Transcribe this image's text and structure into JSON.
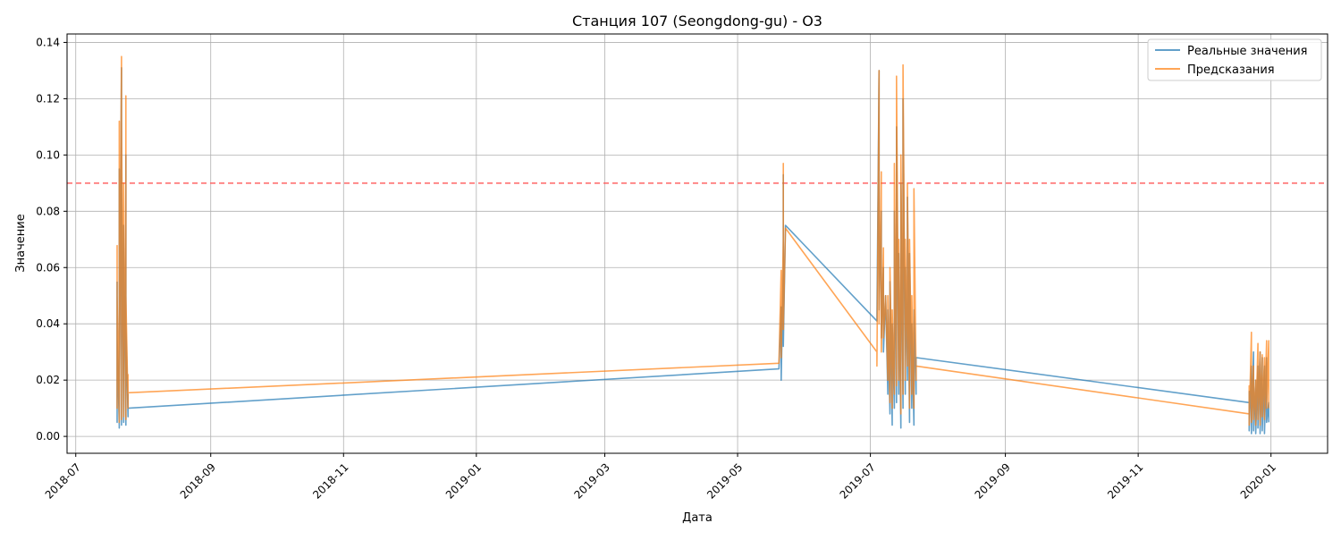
{
  "chart_data": {
    "type": "line",
    "title": "Станция 107 (Seongdong-gu) - O3",
    "xlabel": "Дата",
    "ylabel": "Значение",
    "xlim": [
      "2018-06-27",
      "2020-01-27"
    ],
    "ylim": [
      -0.006,
      0.143
    ],
    "x_ticks": [
      "2018-07",
      "2018-09",
      "2018-11",
      "2019-01",
      "2019-03",
      "2019-05",
      "2019-07",
      "2019-09",
      "2019-11",
      "2020-01"
    ],
    "y_ticks": [
      "0.00",
      "0.02",
      "0.04",
      "0.06",
      "0.08",
      "0.10",
      "0.12",
      "0.14"
    ],
    "grid": true,
    "legend_position": "upper right",
    "threshold": {
      "value": 0.09,
      "color": "#ff6666",
      "style": "dashed"
    },
    "series": [
      {
        "name": "Реальные значения",
        "color": "#1f77b4",
        "points": [
          [
            "2018-07-20",
            0.055
          ],
          [
            "2018-07-20",
            0.005
          ],
          [
            "2018-07-20",
            0.035
          ],
          [
            "2018-07-21",
            0.004
          ],
          [
            "2018-07-21",
            0.09
          ],
          [
            "2018-07-21",
            0.003
          ],
          [
            "2018-07-21",
            0.095
          ],
          [
            "2018-07-21",
            0.005
          ],
          [
            "2018-07-22",
            0.131
          ],
          [
            "2018-07-22",
            0.004
          ],
          [
            "2018-07-22",
            0.06
          ],
          [
            "2018-07-22",
            0.005
          ],
          [
            "2018-07-22",
            0.095
          ],
          [
            "2018-07-23",
            0.006
          ],
          [
            "2018-07-23",
            0.05
          ],
          [
            "2018-07-23",
            0.005
          ],
          [
            "2018-07-23",
            0.075
          ],
          [
            "2018-07-24",
            0.004
          ],
          [
            "2018-07-24",
            0.1
          ],
          [
            "2018-07-24",
            0.006
          ],
          [
            "2018-07-24",
            0.04
          ],
          [
            "2018-07-25",
            0.007
          ],
          [
            "2018-07-25",
            0.015
          ],
          [
            "2018-07-25",
            0.01
          ],
          [
            "2019-05-20",
            0.024
          ],
          [
            "2019-05-21",
            0.046
          ],
          [
            "2019-05-21",
            0.02
          ],
          [
            "2019-05-22",
            0.06
          ],
          [
            "2019-05-22",
            0.035
          ],
          [
            "2019-05-22",
            0.093
          ],
          [
            "2019-05-22",
            0.032
          ],
          [
            "2019-05-23",
            0.075
          ],
          [
            "2019-07-04",
            0.041
          ],
          [
            "2019-07-05",
            0.13
          ],
          [
            "2019-07-05",
            0.045
          ],
          [
            "2019-07-06",
            0.08
          ],
          [
            "2019-07-06",
            0.035
          ],
          [
            "2019-07-07",
            0.06
          ],
          [
            "2019-07-07",
            0.03
          ],
          [
            "2019-07-08",
            0.05
          ],
          [
            "2019-07-09",
            0.015
          ],
          [
            "2019-07-09",
            0.045
          ],
          [
            "2019-07-10",
            0.008
          ],
          [
            "2019-07-10",
            0.055
          ],
          [
            "2019-07-11",
            0.004
          ],
          [
            "2019-07-11",
            0.04
          ],
          [
            "2019-07-12",
            0.01
          ],
          [
            "2019-07-12",
            0.08
          ],
          [
            "2019-07-13",
            0.012
          ],
          [
            "2019-07-13",
            0.11
          ],
          [
            "2019-07-14",
            0.015
          ],
          [
            "2019-07-14",
            0.065
          ],
          [
            "2019-07-15",
            0.003
          ],
          [
            "2019-07-15",
            0.09
          ],
          [
            "2019-07-16",
            0.01
          ],
          [
            "2019-07-16",
            0.12
          ],
          [
            "2019-07-17",
            0.015
          ],
          [
            "2019-07-17",
            0.06
          ],
          [
            "2019-07-18",
            0.02
          ],
          [
            "2019-07-18",
            0.085
          ],
          [
            "2019-07-19",
            0.005
          ],
          [
            "2019-07-19",
            0.065
          ],
          [
            "2019-07-20",
            0.01
          ],
          [
            "2019-07-20",
            0.04
          ],
          [
            "2019-07-21",
            0.004
          ],
          [
            "2019-07-21",
            0.045
          ],
          [
            "2019-07-22",
            0.015
          ],
          [
            "2019-07-22",
            0.028
          ],
          [
            "2019-12-22",
            0.012
          ],
          [
            "2019-12-22",
            0.016
          ],
          [
            "2019-12-22",
            0.002
          ],
          [
            "2019-12-23",
            0.025
          ],
          [
            "2019-12-23",
            0.001
          ],
          [
            "2019-12-24",
            0.03
          ],
          [
            "2019-12-24",
            0.002
          ],
          [
            "2019-12-25",
            0.02
          ],
          [
            "2019-12-25",
            0.001
          ],
          [
            "2019-12-26",
            0.025
          ],
          [
            "2019-12-26",
            0.003
          ],
          [
            "2019-12-27",
            0.03
          ],
          [
            "2019-12-27",
            0.001
          ],
          [
            "2019-12-28",
            0.028
          ],
          [
            "2019-12-28",
            0.002
          ],
          [
            "2019-12-29",
            0.025
          ],
          [
            "2019-12-29",
            0.001
          ],
          [
            "2019-12-30",
            0.028
          ],
          [
            "2019-12-30",
            0.005
          ],
          [
            "2019-12-31",
            0.012
          ],
          [
            "2019-12-31",
            0.005
          ]
        ]
      },
      {
        "name": "Предсказания",
        "color": "#ff7f0e",
        "points": [
          [
            "2018-07-20",
            0.068
          ],
          [
            "2018-07-20",
            0.01
          ],
          [
            "2018-07-20",
            0.05
          ],
          [
            "2018-07-21",
            0.006
          ],
          [
            "2018-07-21",
            0.112
          ],
          [
            "2018-07-21",
            0.005
          ],
          [
            "2018-07-21",
            0.1
          ],
          [
            "2018-07-21",
            0.008
          ],
          [
            "2018-07-22",
            0.135
          ],
          [
            "2018-07-22",
            0.006
          ],
          [
            "2018-07-22",
            0.07
          ],
          [
            "2018-07-22",
            0.008
          ],
          [
            "2018-07-22",
            0.112
          ],
          [
            "2018-07-23",
            0.008
          ],
          [
            "2018-07-23",
            0.06
          ],
          [
            "2018-07-23",
            0.007
          ],
          [
            "2018-07-23",
            0.09
          ],
          [
            "2018-07-24",
            0.006
          ],
          [
            "2018-07-24",
            0.121
          ],
          [
            "2018-07-24",
            0.008
          ],
          [
            "2018-07-24",
            0.05
          ],
          [
            "2018-07-25",
            0.01
          ],
          [
            "2018-07-25",
            0.022
          ],
          [
            "2018-07-25",
            0.0155
          ],
          [
            "2019-05-20",
            0.026
          ],
          [
            "2019-05-21",
            0.059
          ],
          [
            "2019-05-21",
            0.028
          ],
          [
            "2019-05-22",
            0.07
          ],
          [
            "2019-05-22",
            0.04
          ],
          [
            "2019-05-22",
            0.097
          ],
          [
            "2019-05-22",
            0.038
          ],
          [
            "2019-05-23",
            0.074
          ],
          [
            "2019-07-04",
            0.03
          ],
          [
            "2019-07-04",
            0.025
          ],
          [
            "2019-07-05",
            0.13
          ],
          [
            "2019-07-05",
            0.04
          ],
          [
            "2019-07-06",
            0.094
          ],
          [
            "2019-07-06",
            0.03
          ],
          [
            "2019-07-07",
            0.067
          ],
          [
            "2019-07-07",
            0.035
          ],
          [
            "2019-07-08",
            0.05
          ],
          [
            "2019-07-09",
            0.02
          ],
          [
            "2019-07-09",
            0.05
          ],
          [
            "2019-07-10",
            0.012
          ],
          [
            "2019-07-10",
            0.06
          ],
          [
            "2019-07-11",
            0.01
          ],
          [
            "2019-07-11",
            0.045
          ],
          [
            "2019-07-12",
            0.015
          ],
          [
            "2019-07-12",
            0.097
          ],
          [
            "2019-07-13",
            0.018
          ],
          [
            "2019-07-13",
            0.128
          ],
          [
            "2019-07-14",
            0.02
          ],
          [
            "2019-07-14",
            0.07
          ],
          [
            "2019-07-15",
            0.008
          ],
          [
            "2019-07-15",
            0.1
          ],
          [
            "2019-07-16",
            0.015
          ],
          [
            "2019-07-16",
            0.132
          ],
          [
            "2019-07-17",
            0.02
          ],
          [
            "2019-07-17",
            0.07
          ],
          [
            "2019-07-18",
            0.025
          ],
          [
            "2019-07-18",
            0.09
          ],
          [
            "2019-07-19",
            0.01
          ],
          [
            "2019-07-19",
            0.07
          ],
          [
            "2019-07-20",
            0.015
          ],
          [
            "2019-07-20",
            0.05
          ],
          [
            "2019-07-21",
            0.01
          ],
          [
            "2019-07-21",
            0.088
          ],
          [
            "2019-07-22",
            0.02
          ],
          [
            "2019-07-22",
            0.025
          ],
          [
            "2019-12-22",
            0.008
          ],
          [
            "2019-12-22",
            0.018
          ],
          [
            "2019-12-22",
            0.004
          ],
          [
            "2019-12-23",
            0.037
          ],
          [
            "2019-12-23",
            0.005
          ],
          [
            "2019-12-24",
            0.025
          ],
          [
            "2019-12-24",
            0.006
          ],
          [
            "2019-12-25",
            0.02
          ],
          [
            "2019-12-25",
            0.004
          ],
          [
            "2019-12-26",
            0.033
          ],
          [
            "2019-12-26",
            0.006
          ],
          [
            "2019-12-27",
            0.03
          ],
          [
            "2019-12-27",
            0.004
          ],
          [
            "2019-12-28",
            0.029
          ],
          [
            "2019-12-28",
            0.007
          ],
          [
            "2019-12-29",
            0.028
          ],
          [
            "2019-12-29",
            0.006
          ],
          [
            "2019-12-30",
            0.034
          ],
          [
            "2019-12-30",
            0.01
          ],
          [
            "2019-12-31",
            0.034
          ],
          [
            "2019-12-31",
            0.01
          ]
        ]
      }
    ]
  }
}
